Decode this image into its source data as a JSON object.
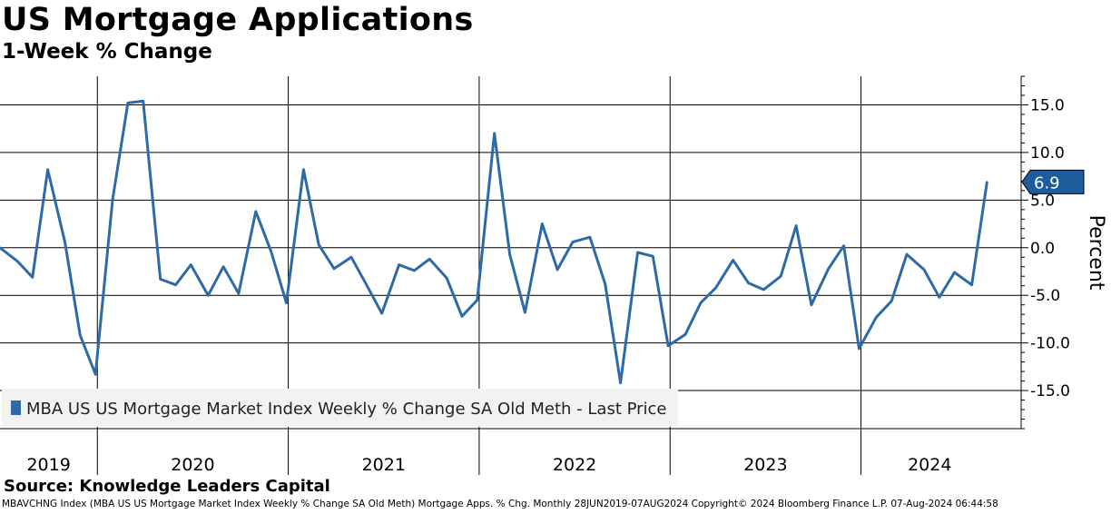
{
  "header": {
    "title": "US Mortgage Applications",
    "subtitle": "1-Week % Change"
  },
  "source": "Source: Knowledge Leaders Capital",
  "footer": "MBAVCHNG Index (MBA US US Mortgage Market Index Weekly % Change SA Old Meth) Mortgage Apps. % Chg.  Monthly 28JUN2019-07AUG2024  Copyright© 2024 Bloomberg Finance L.P.  07-Aug-2024 06:44:58",
  "colors": {
    "line": "#2e6aa7",
    "legend_bg": "#f2f2f2"
  },
  "chart_data": {
    "type": "line",
    "title": "US Mortgage Applications",
    "subtitle": "1-Week % Change",
    "ylabel": "Percent",
    "ylim": [
      -19,
      18
    ],
    "yticks": [
      15.0,
      10.0,
      5.0,
      0.0,
      -5.0,
      -10.0,
      -15.0
    ],
    "ytick_labels": [
      "15.0",
      "10.0",
      "5.0",
      "0.0",
      "-5.0",
      "-10.0",
      "-15.0"
    ],
    "grid": true,
    "x_years": [
      {
        "label": "2019",
        "start": 2019.49,
        "end": 2020.0
      },
      {
        "label": "2020",
        "start": 2020.0,
        "end": 2021.0
      },
      {
        "label": "2021",
        "start": 2021.0,
        "end": 2022.0
      },
      {
        "label": "2022",
        "start": 2022.0,
        "end": 2023.0
      },
      {
        "label": "2023",
        "start": 2023.0,
        "end": 2024.0
      },
      {
        "label": "2024",
        "start": 2024.0,
        "end": 2024.72
      }
    ],
    "xlim": [
      2019.49,
      2024.72
    ],
    "legend": "top-left inside, below plot",
    "series": [
      {
        "name": "MBA US US Mortgage Market Index Weekly % Change SA Old Meth - Last Price",
        "last_value": 6.9,
        "last_value_label": "6.9",
        "points": [
          [
            2019.49,
            0.0
          ],
          [
            2019.58,
            -1.4
          ],
          [
            2019.66,
            -3.1
          ],
          [
            2019.74,
            8.2
          ],
          [
            2019.83,
            0.6
          ],
          [
            2019.91,
            -9.2
          ],
          [
            2019.99,
            -13.3
          ],
          [
            2020.08,
            5.1
          ],
          [
            2020.16,
            15.2
          ],
          [
            2020.24,
            15.4
          ],
          [
            2020.33,
            -3.3
          ],
          [
            2020.41,
            -3.9
          ],
          [
            2020.49,
            -1.8
          ],
          [
            2020.58,
            -5.0
          ],
          [
            2020.66,
            -2.0
          ],
          [
            2020.74,
            -4.8
          ],
          [
            2020.83,
            3.8
          ],
          [
            2020.91,
            -0.4
          ],
          [
            2020.99,
            -5.8
          ],
          [
            2021.08,
            8.2
          ],
          [
            2021.16,
            0.3
          ],
          [
            2021.24,
            -2.2
          ],
          [
            2021.33,
            -1.0
          ],
          [
            2021.41,
            -3.9
          ],
          [
            2021.49,
            -6.9
          ],
          [
            2021.58,
            -1.8
          ],
          [
            2021.66,
            -2.4
          ],
          [
            2021.74,
            -1.2
          ],
          [
            2021.83,
            -3.2
          ],
          [
            2021.91,
            -7.2
          ],
          [
            2021.99,
            -5.5
          ],
          [
            2022.08,
            12.0
          ],
          [
            2022.16,
            -0.7
          ],
          [
            2022.24,
            -6.8
          ],
          [
            2022.33,
            2.5
          ],
          [
            2022.41,
            -2.3
          ],
          [
            2022.49,
            0.6
          ],
          [
            2022.58,
            1.1
          ],
          [
            2022.66,
            -3.8
          ],
          [
            2022.74,
            -14.2
          ],
          [
            2022.83,
            -0.5
          ],
          [
            2022.91,
            -0.9
          ],
          [
            2022.99,
            -10.3
          ],
          [
            2023.08,
            -9.1
          ],
          [
            2023.16,
            -5.8
          ],
          [
            2023.24,
            -4.2
          ],
          [
            2023.33,
            -1.3
          ],
          [
            2023.41,
            -3.7
          ],
          [
            2023.49,
            -4.4
          ],
          [
            2023.58,
            -3.0
          ],
          [
            2023.66,
            2.3
          ],
          [
            2023.74,
            -6.0
          ],
          [
            2023.83,
            -2.2
          ],
          [
            2023.91,
            0.2
          ],
          [
            2023.99,
            -10.6
          ],
          [
            2024.08,
            -7.3
          ],
          [
            2024.16,
            -5.6
          ],
          [
            2024.24,
            -0.7
          ],
          [
            2024.33,
            -2.3
          ],
          [
            2024.41,
            -5.2
          ],
          [
            2024.49,
            -2.6
          ],
          [
            2024.58,
            -3.9
          ],
          [
            2024.66,
            6.9
          ]
        ]
      }
    ]
  }
}
